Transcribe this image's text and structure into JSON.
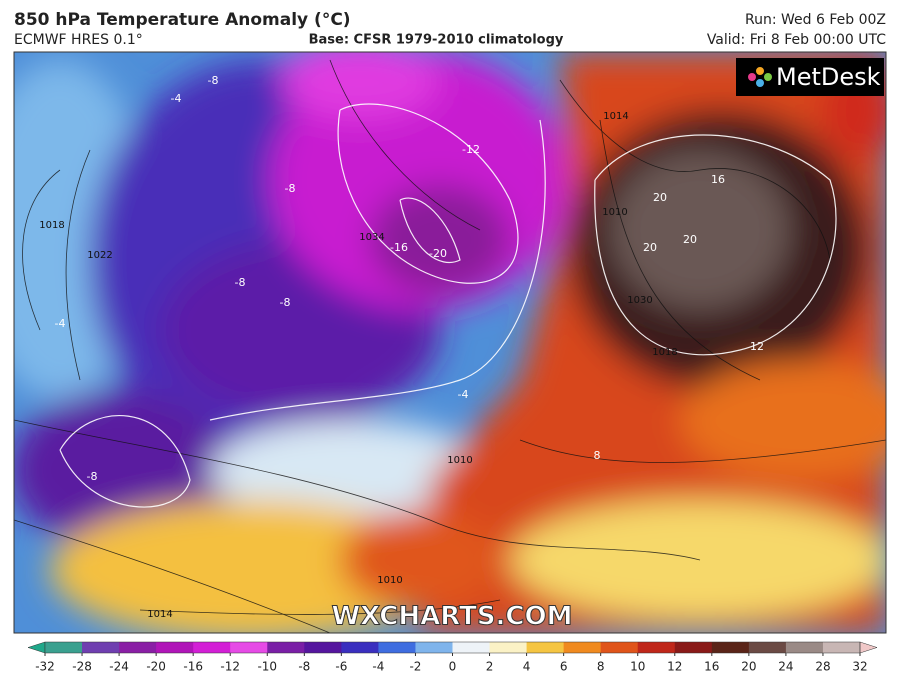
{
  "header": {
    "title": "850 hPa Temperature Anomaly (°C)",
    "model": "ECMWF HRES 0.1°",
    "base": "Base: CFSR 1979-2010 climatology",
    "run": "Run: Wed 6 Feb 00Z",
    "valid": "Valid: Fri 8 Feb 00:00 UTC"
  },
  "logo": "MetDesk",
  "watermark": "WXCHARTS.COM",
  "map": {
    "temperature_labels": [
      -20,
      -16,
      -12,
      -8,
      -8,
      -8,
      -8,
      -8,
      -4,
      -4,
      -4,
      8,
      12,
      16,
      20,
      20,
      20
    ],
    "pressure_labels": [
      1014,
      1018,
      1022,
      1010,
      1030,
      1034,
      1018,
      1010,
      1014,
      1010
    ]
  },
  "colorbar": {
    "ticks": [
      -32,
      -28,
      -24,
      -20,
      -16,
      -12,
      -10,
      -8,
      -6,
      -4,
      -2,
      0,
      2,
      4,
      6,
      8,
      10,
      12,
      16,
      20,
      24,
      28,
      32
    ],
    "colors": [
      "#1fa88a",
      "#3aa08f",
      "#6f3fb0",
      "#8a1fa5",
      "#b015b8",
      "#d31fd6",
      "#e64be6",
      "#7a1fa6",
      "#55169e",
      "#3a2fbf",
      "#3f6de0",
      "#7fb4ec",
      "#eef3f8",
      "#fbf2c6",
      "#f5c542",
      "#f08a1f",
      "#e0541a",
      "#c0271a",
      "#8a1a18",
      "#5a2418",
      "#6b4a44",
      "#9a8a86",
      "#c8b6b4",
      "#f0c8c8"
    ]
  }
}
